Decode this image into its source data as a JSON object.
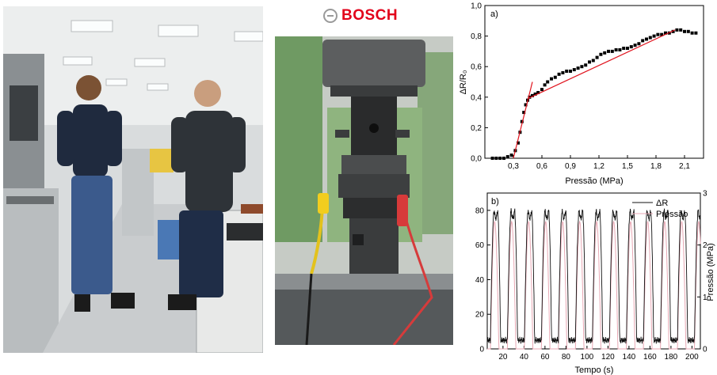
{
  "logo": {
    "text": "BOSCH"
  },
  "chart_data": [
    {
      "type": "scatter",
      "panel": "a)",
      "xlabel": "Pressão (MPa)",
      "ylabel": "ΔR/R₀",
      "xlim": [
        0,
        2.3
      ],
      "ylim": [
        0,
        1.0
      ],
      "xticks": [
        "0,3",
        "0,6",
        "0,9",
        "1,2",
        "1,5",
        "1,8",
        "2,1"
      ],
      "xtick_values": [
        0.3,
        0.6,
        0.9,
        1.2,
        1.5,
        1.8,
        2.1
      ],
      "yticks": [
        "0,0",
        "0,2",
        "0,4",
        "0,6",
        "0,8",
        "1,0"
      ],
      "ytick_values": [
        0,
        0.2,
        0.4,
        0.6,
        0.8,
        1.0
      ],
      "series": [
        {
          "x": [
            0.08,
            0.12,
            0.16,
            0.2,
            0.24,
            0.28,
            0.32,
            0.35,
            0.37,
            0.39,
            0.41,
            0.43,
            0.45,
            0.47,
            0.5,
            0.53,
            0.56,
            0.6,
            0.63,
            0.66,
            0.7,
            0.74,
            0.78,
            0.82,
            0.86,
            0.9,
            0.94,
            0.98,
            1.02,
            1.06,
            1.1,
            1.14,
            1.18,
            1.22,
            1.26,
            1.3,
            1.34,
            1.38,
            1.42,
            1.46,
            1.5,
            1.54,
            1.58,
            1.62,
            1.66,
            1.7,
            1.74,
            1.78,
            1.82,
            1.86,
            1.9,
            1.94,
            1.98,
            2.02,
            2.06,
            2.1,
            2.14,
            2.18,
            2.22
          ],
          "y": [
            0.0,
            0.0,
            0.0,
            0.0,
            0.01,
            0.02,
            0.05,
            0.1,
            0.17,
            0.24,
            0.3,
            0.35,
            0.38,
            0.4,
            0.41,
            0.42,
            0.43,
            0.45,
            0.48,
            0.5,
            0.52,
            0.53,
            0.55,
            0.56,
            0.57,
            0.57,
            0.58,
            0.59,
            0.6,
            0.61,
            0.63,
            0.64,
            0.66,
            0.68,
            0.69,
            0.7,
            0.7,
            0.71,
            0.71,
            0.72,
            0.72,
            0.73,
            0.74,
            0.75,
            0.77,
            0.78,
            0.79,
            0.8,
            0.81,
            0.81,
            0.82,
            0.82,
            0.83,
            0.84,
            0.84,
            0.83,
            0.83,
            0.82,
            0.82
          ]
        }
      ],
      "fit_lines": [
        {
          "x": [
            0.3,
            0.5
          ],
          "y": [
            0.0,
            0.5
          ]
        },
        {
          "x": [
            0.45,
            2.0
          ],
          "y": [
            0.39,
            0.84
          ]
        }
      ]
    },
    {
      "type": "line",
      "panel": "b)",
      "xlabel": "Tempo (s)",
      "ylabel_right": "Pressão (MPa)",
      "xlim": [
        5,
        208
      ],
      "ylim": [
        0,
        90
      ],
      "ylim_right": [
        0,
        3
      ],
      "xticks": [
        "20",
        "40",
        "60",
        "80",
        "100",
        "120",
        "140",
        "160",
        "180",
        "200"
      ],
      "xtick_values": [
        20,
        40,
        60,
        80,
        100,
        120,
        140,
        160,
        180,
        200
      ],
      "yticks": [
        "0",
        "20",
        "40",
        "60",
        "80"
      ],
      "ytick_values": [
        0,
        20,
        40,
        60,
        80
      ],
      "yticks_right": [
        "0",
        "1",
        "2",
        "3"
      ],
      "ytick_values_right": [
        0,
        1,
        2,
        3
      ],
      "legend": {
        "position": "top-right",
        "entries": [
          "ΔR",
          "Pressão"
        ]
      },
      "series": [
        {
          "name": "ΔR",
          "color": "#111111",
          "axis": "left",
          "period": 16.2,
          "start": 8,
          "peak": 80,
          "base": 5
        },
        {
          "name": "Pressão",
          "color": "#e8a8b4",
          "axis": "right",
          "period": 16.2,
          "start": 8,
          "peak": 2.45,
          "base": 0
        }
      ]
    }
  ]
}
